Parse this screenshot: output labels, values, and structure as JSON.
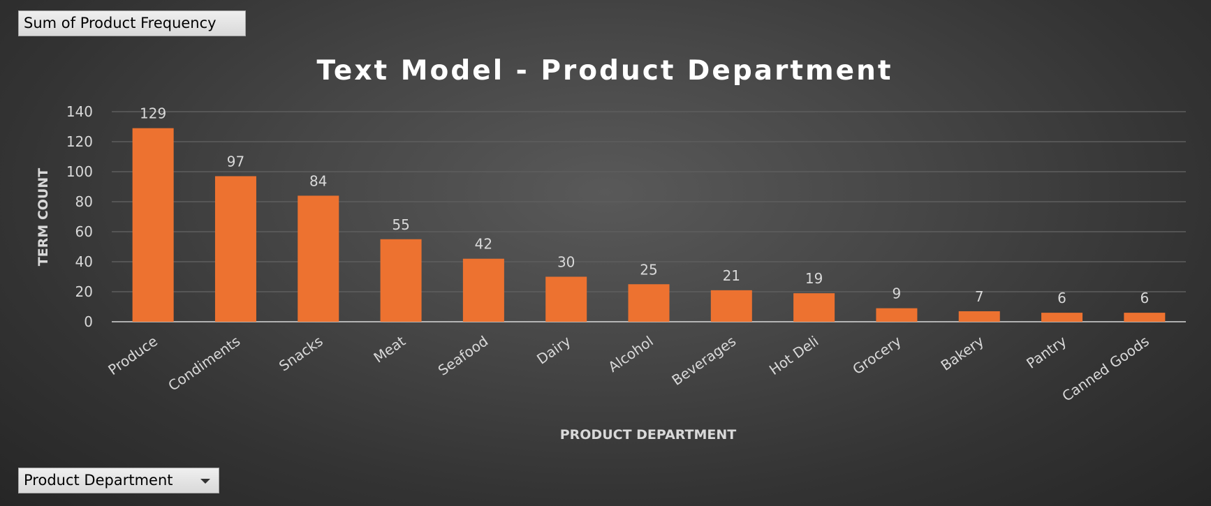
{
  "pivot": {
    "value_field": "Sum of Product Frequency",
    "axis_field": "Product Department",
    "axis_dropdown_icon": "chevron-down-icon"
  },
  "colors": {
    "bar": "#ED7230",
    "text": "#D9D9D9",
    "title": "#FFFFFF"
  },
  "chart_data": {
    "type": "bar",
    "title": "Text Model - Product Department",
    "xlabel": "PRODUCT DEPARTMENT",
    "ylabel": "TERM COUNT",
    "ylim": [
      0,
      140
    ],
    "yticks": [
      0,
      20,
      40,
      60,
      80,
      100,
      120,
      140
    ],
    "grid": true,
    "legend": "none",
    "data_labels": true,
    "categories": [
      "Produce",
      "Condiments",
      "Snacks",
      "Meat",
      "Seafood",
      "Dairy",
      "Alcohol",
      "Beverages",
      "Hot Deli",
      "Grocery",
      "Bakery",
      "Pantry",
      "Canned Goods"
    ],
    "series": [
      {
        "values": [
          129,
          97,
          84,
          55,
          42,
          30,
          25,
          21,
          19,
          9,
          7,
          6,
          6
        ]
      }
    ]
  }
}
